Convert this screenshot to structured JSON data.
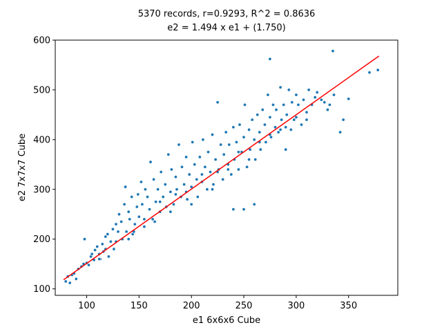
{
  "chart_data": {
    "type": "scatter",
    "title": "5370 records, r=0.9293, R^2 = 0.8636",
    "subtitle": "e2 = 1.494 x e1 + (1.750)",
    "xlabel": "e1 6x6x6 Cube",
    "ylabel": "e2 7x7x7 Cube",
    "xlim": [
      70,
      397
    ],
    "ylim": [
      87,
      600
    ],
    "xticks": [
      100,
      150,
      200,
      250,
      300,
      350
    ],
    "yticks": [
      100,
      200,
      300,
      400,
      500,
      600
    ],
    "grid": false,
    "records": 5370,
    "r": 0.9293,
    "r_squared": 0.8636,
    "regression": {
      "slope": 1.494,
      "intercept": 1.75,
      "x_range": [
        78,
        379
      ]
    },
    "point_color": "#1f77b4",
    "line_color": "#ff0000",
    "points": [
      [
        80,
        115
      ],
      [
        82,
        125
      ],
      [
        84,
        112
      ],
      [
        86,
        128
      ],
      [
        88,
        131
      ],
      [
        90,
        120
      ],
      [
        92,
        140
      ],
      [
        95,
        145
      ],
      [
        97,
        150
      ],
      [
        98,
        200
      ],
      [
        100,
        152
      ],
      [
        102,
        148
      ],
      [
        104,
        165
      ],
      [
        105,
        170
      ],
      [
        107,
        158
      ],
      [
        108,
        178
      ],
      [
        110,
        185
      ],
      [
        112,
        170
      ],
      [
        113,
        160
      ],
      [
        115,
        190
      ],
      [
        116,
        175
      ],
      [
        118,
        205
      ],
      [
        120,
        210
      ],
      [
        121,
        165
      ],
      [
        123,
        195
      ],
      [
        125,
        220
      ],
      [
        126,
        180
      ],
      [
        128,
        230
      ],
      [
        130,
        215
      ],
      [
        131,
        250
      ],
      [
        133,
        235
      ],
      [
        134,
        200
      ],
      [
        136,
        270
      ],
      [
        137,
        305
      ],
      [
        138,
        215
      ],
      [
        140,
        255
      ],
      [
        141,
        240
      ],
      [
        143,
        285
      ],
      [
        144,
        210
      ],
      [
        146,
        230
      ],
      [
        148,
        265
      ],
      [
        149,
        290
      ],
      [
        150,
        245
      ],
      [
        152,
        315
      ],
      [
        153,
        270
      ],
      [
        155,
        225
      ],
      [
        156,
        300
      ],
      [
        158,
        285
      ],
      [
        160,
        260
      ],
      [
        161,
        355
      ],
      [
        163,
        240
      ],
      [
        164,
        320
      ],
      [
        166,
        275
      ],
      [
        168,
        300
      ],
      [
        170,
        255
      ],
      [
        171,
        335
      ],
      [
        173,
        285
      ],
      [
        175,
        310
      ],
      [
        176,
        265
      ],
      [
        178,
        370
      ],
      [
        180,
        295
      ],
      [
        181,
        340
      ],
      [
        183,
        270
      ],
      [
        185,
        325
      ],
      [
        186,
        300
      ],
      [
        188,
        390
      ],
      [
        190,
        285
      ],
      [
        191,
        345
      ],
      [
        193,
        310
      ],
      [
        195,
        365
      ],
      [
        196,
        280
      ],
      [
        198,
        330
      ],
      [
        200,
        305
      ],
      [
        201,
        395
      ],
      [
        203,
        350
      ],
      [
        205,
        320
      ],
      [
        206,
        285
      ],
      [
        208,
        365
      ],
      [
        210,
        330
      ],
      [
        211,
        400
      ],
      [
        213,
        345
      ],
      [
        215,
        300
      ],
      [
        216,
        375
      ],
      [
        218,
        335
      ],
      [
        220,
        410
      ],
      [
        221,
        310
      ],
      [
        223,
        360
      ],
      [
        225,
        475
      ],
      [
        226,
        340
      ],
      [
        228,
        390
      ],
      [
        230,
        320
      ],
      [
        231,
        370
      ],
      [
        233,
        415
      ],
      [
        235,
        350
      ],
      [
        236,
        390
      ],
      [
        238,
        330
      ],
      [
        240,
        425
      ],
      [
        241,
        360
      ],
      [
        243,
        395
      ],
      [
        245,
        340
      ],
      [
        246,
        430
      ],
      [
        248,
        375
      ],
      [
        250,
        405
      ],
      [
        251,
        470
      ],
      [
        253,
        345
      ],
      [
        255,
        420
      ],
      [
        256,
        380
      ],
      [
        258,
        440
      ],
      [
        260,
        400
      ],
      [
        261,
        360
      ],
      [
        263,
        450
      ],
      [
        265,
        415
      ],
      [
        266,
        380
      ],
      [
        268,
        460
      ],
      [
        270,
        430
      ],
      [
        271,
        395
      ],
      [
        273,
        490
      ],
      [
        275,
        445
      ],
      [
        276,
        405
      ],
      [
        278,
        470
      ],
      [
        280,
        425
      ],
      [
        281,
        460
      ],
      [
        283,
        415
      ],
      [
        285,
        505
      ],
      [
        286,
        440
      ],
      [
        288,
        470
      ],
      [
        290,
        380
      ],
      [
        291,
        450
      ],
      [
        293,
        500
      ],
      [
        295,
        420
      ],
      [
        296,
        475
      ],
      [
        298,
        440
      ],
      [
        300,
        490
      ],
      [
        302,
        470
      ],
      [
        305,
        430
      ],
      [
        307,
        480
      ],
      [
        310,
        440
      ],
      [
        312,
        500
      ],
      [
        315,
        470
      ],
      [
        318,
        485
      ],
      [
        320,
        495
      ],
      [
        324,
        480
      ],
      [
        327,
        475
      ],
      [
        330,
        460
      ],
      [
        332,
        470
      ],
      [
        335,
        578
      ],
      [
        336,
        490
      ],
      [
        342,
        415
      ],
      [
        345,
        440
      ],
      [
        350,
        482
      ],
      [
        370,
        535
      ],
      [
        378,
        540
      ],
      [
        275,
        562
      ],
      [
        250,
        260
      ],
      [
        240,
        260
      ],
      [
        260,
        270
      ],
      [
        220,
        300
      ],
      [
        200,
        270
      ],
      [
        180,
        255
      ],
      [
        165,
        235
      ],
      [
        140,
        200
      ],
      [
        128,
        195
      ],
      [
        118,
        180
      ],
      [
        112,
        160
      ],
      [
        145,
        215
      ],
      [
        155,
        240
      ],
      [
        170,
        275
      ],
      [
        185,
        290
      ],
      [
        195,
        295
      ],
      [
        210,
        315
      ],
      [
        225,
        335
      ],
      [
        235,
        340
      ],
      [
        245,
        375
      ],
      [
        255,
        360
      ],
      [
        265,
        395
      ],
      [
        275,
        410
      ],
      [
        285,
        420
      ],
      [
        290,
        425
      ],
      [
        300,
        445
      ],
      [
        310,
        455
      ]
    ]
  }
}
